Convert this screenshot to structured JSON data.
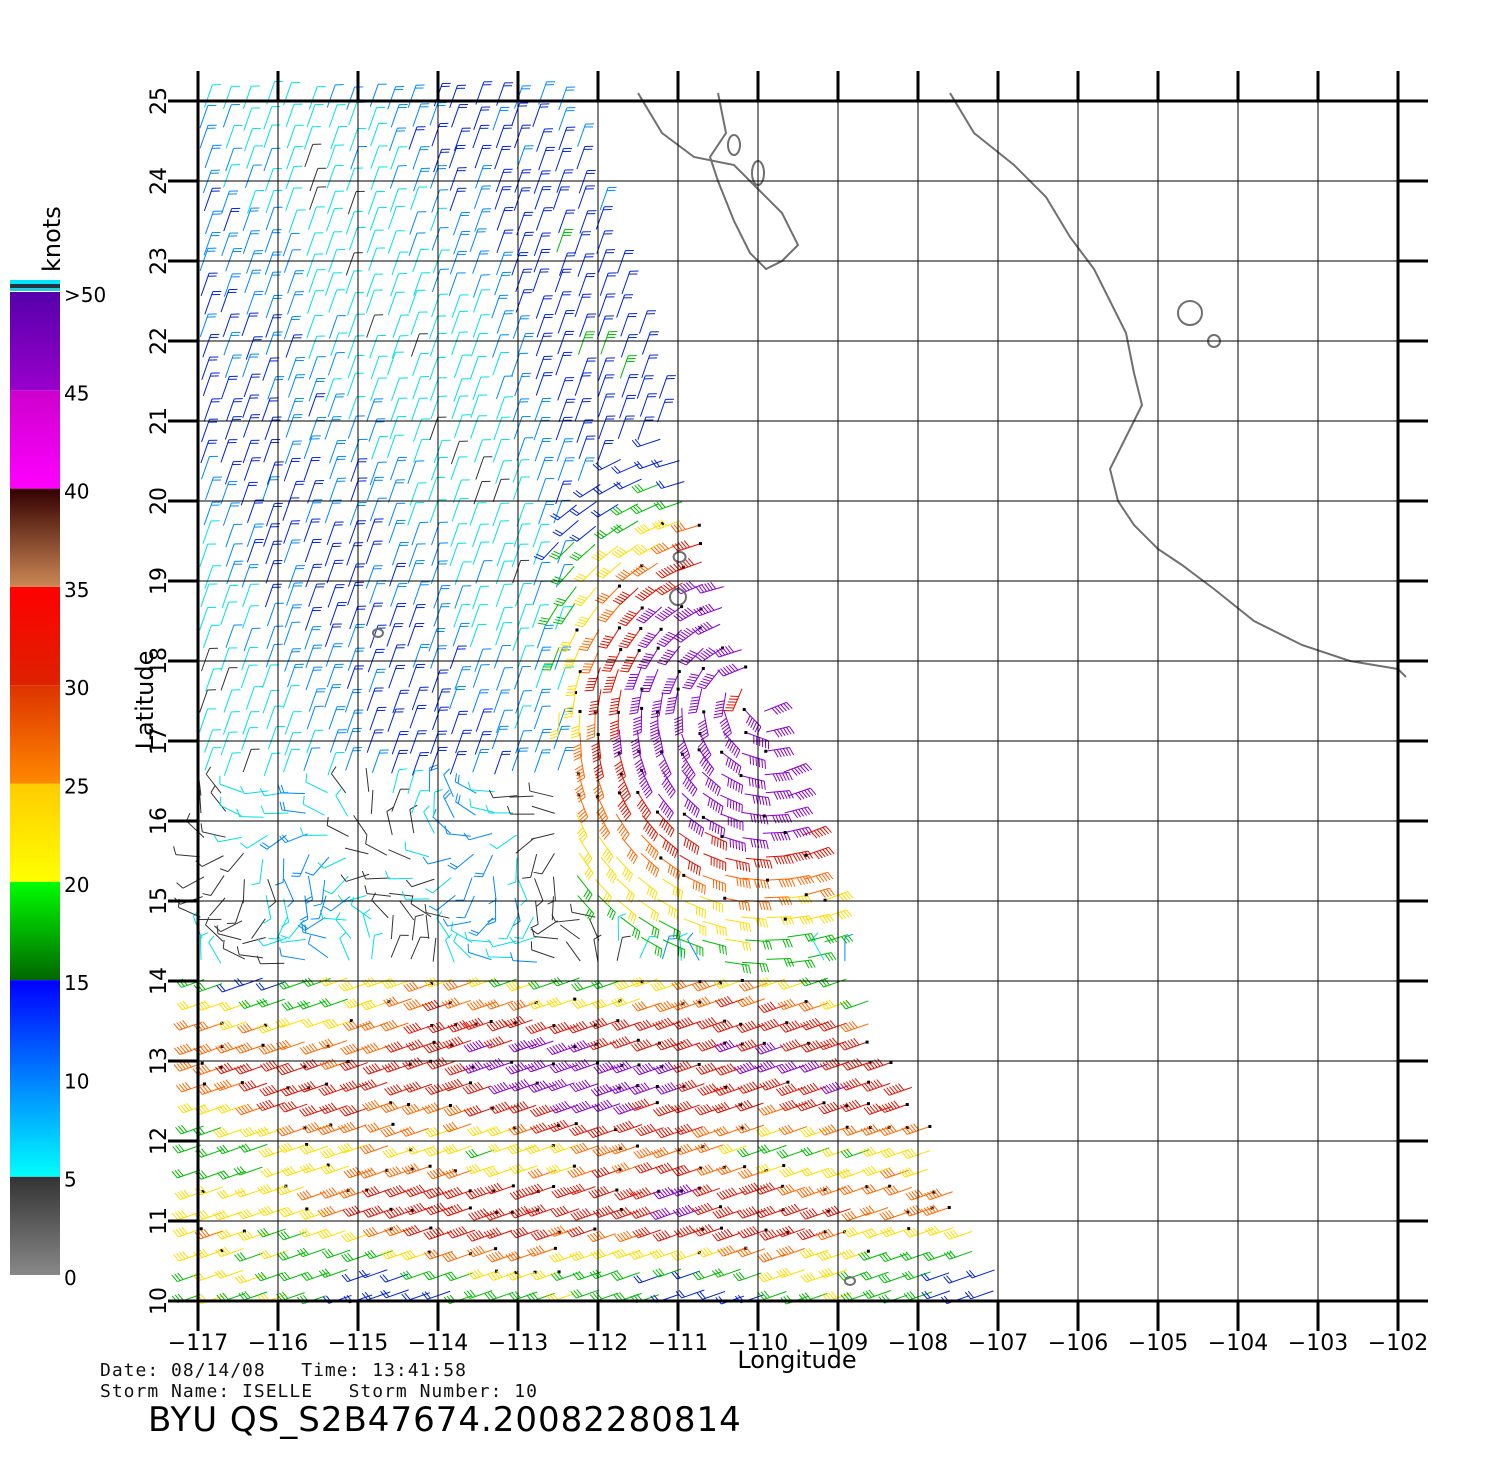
{
  "chart_data": {
    "type": "scatter",
    "subtype": "wind-barbs",
    "xlabel": "Longitude",
    "ylabel": "Latitude",
    "xlim": [
      -117,
      -102
    ],
    "ylim": [
      10,
      25
    ],
    "x_ticks": [
      -117,
      -116,
      -115,
      -114,
      -113,
      -112,
      -111,
      -110,
      -109,
      -108,
      -107,
      -106,
      -105,
      -104,
      -103,
      -102
    ],
    "y_ticks": [
      10,
      11,
      12,
      13,
      14,
      15,
      16,
      17,
      18,
      19,
      20,
      21,
      22,
      23,
      24,
      25
    ],
    "grid": true,
    "storm_center": {
      "lon": -110.0,
      "lat": 17.6
    },
    "colorbar": {
      "unit": "knots",
      "labels": [
        "0",
        "5",
        "10",
        "15",
        "20",
        "25",
        "30",
        "35",
        "40",
        "45",
        ">50"
      ],
      "bands": [
        {
          "from": 0,
          "to": 5,
          "colors": [
            "#888888",
            "#333333"
          ]
        },
        {
          "from": 5,
          "to": 15,
          "colors": [
            "#00ffff",
            "#0000ff"
          ]
        },
        {
          "from": 15,
          "to": 20,
          "colors": [
            "#006600",
            "#00ff00"
          ]
        },
        {
          "from": 20,
          "to": 25,
          "colors": [
            "#ffff00",
            "#ffcc00"
          ]
        },
        {
          "from": 25,
          "to": 30,
          "colors": [
            "#ff8800",
            "#dd3300"
          ]
        },
        {
          "from": 30,
          "to": 35,
          "colors": [
            "#dd2200",
            "#ff0000"
          ]
        },
        {
          "from": 35,
          "to": 40,
          "colors": [
            "#cc8855",
            "#330000"
          ]
        },
        {
          "from": 40,
          "to": 45,
          "colors": [
            "#ff00ff",
            "#cc00cc"
          ]
        },
        {
          "from": 45,
          "to": 50,
          "colors": [
            "#9900cc",
            "#5500aa"
          ]
        }
      ]
    }
  },
  "info": {
    "date_line": "Date: 08/14/08   Time: 13:41:58",
    "storm_line": "Storm Name: ISELLE   Storm Number: 10",
    "product": "BYU QS_S2B47674.20082280814"
  },
  "colors": {
    "coastline": "#707070",
    "grid": "#000000"
  }
}
